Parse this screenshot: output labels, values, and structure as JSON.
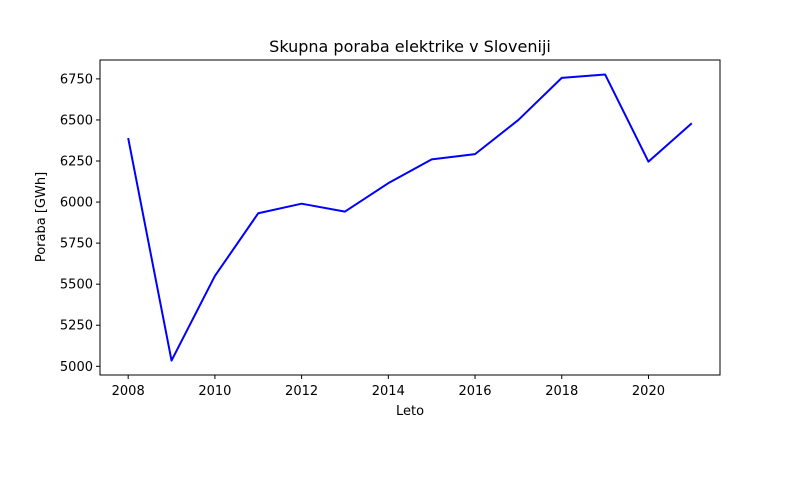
{
  "chart_data": {
    "type": "line",
    "title": "Skupna poraba elektrike v Sloveniji",
    "xlabel": "Leto",
    "ylabel": "Poraba [GWh]",
    "x": [
      2008,
      2009,
      2010,
      2011,
      2012,
      2013,
      2014,
      2015,
      2016,
      2017,
      2018,
      2019,
      2020,
      2021
    ],
    "series": [
      {
        "color": "#0000ff",
        "values": [
          6390,
          5035,
          5550,
          5932,
          5990,
          5942,
          6115,
          6260,
          6292,
          6500,
          6756,
          6777,
          6246,
          6480
        ]
      }
    ],
    "xlim": [
      2007.35,
      2021.65
    ],
    "ylim": [
      4947,
      6865
    ],
    "xticks": [
      "2008",
      "2010",
      "2012",
      "2014",
      "2016",
      "2018",
      "2020"
    ],
    "yticks": [
      "5000",
      "5250",
      "5500",
      "5750",
      "6000",
      "6250",
      "6500",
      "6750"
    ],
    "grid": false,
    "legend": "none"
  }
}
